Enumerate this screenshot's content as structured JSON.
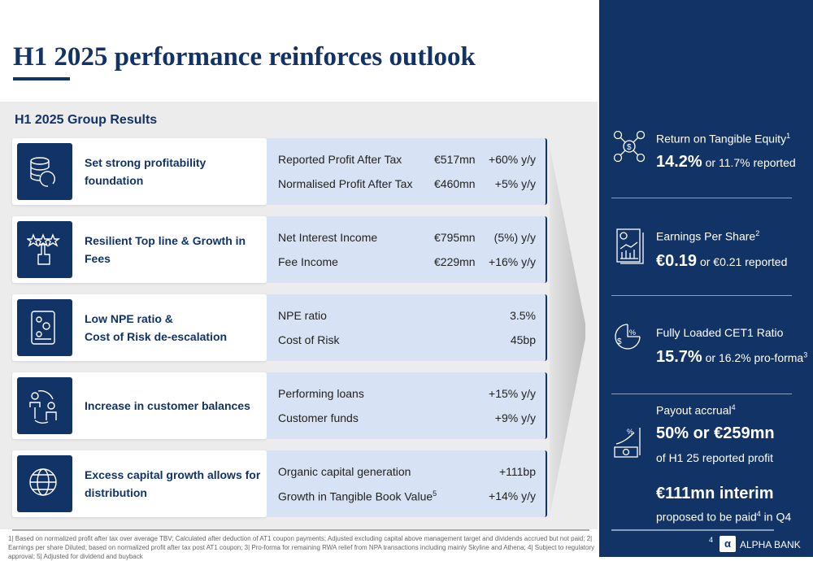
{
  "title": "H1 2025 performance reinforces outlook",
  "subtitle": "H1 2025 Group Results",
  "rows": [
    {
      "icon": "database-coin-icon",
      "label": "Set strong profitability foundation",
      "metrics": [
        {
          "name": "Reported Profit After Tax",
          "value": "€517mn",
          "change": "+60% y/y"
        },
        {
          "name": "Normalised Profit After Tax",
          "value": "€460mn",
          "change": "+5% y/y"
        }
      ]
    },
    {
      "icon": "stars-thumb-icon",
      "label": "Resilient Top line & Growth in Fees",
      "metrics": [
        {
          "name": "Net Interest Income",
          "value": "€795mn",
          "change": "(5%) y/y"
        },
        {
          "name": "Fee Income",
          "value": "€229mn",
          "change": "+16% y/y"
        }
      ]
    },
    {
      "icon": "tablet-gears-icon",
      "label": "Low NPE ratio & Cost of Risk de-escalation",
      "label1": "Low NPE ratio &",
      "label2": "Cost of Risk de-escalation",
      "metrics": [
        {
          "name": "NPE ratio",
          "value": "",
          "change": "3.5%"
        },
        {
          "name": "Cost of Risk",
          "value": "",
          "change": "45bp"
        }
      ]
    },
    {
      "icon": "customers-icon",
      "label": "Increase in customer balances",
      "metrics": [
        {
          "name": "Performing loans",
          "value": "",
          "change": "+15% y/y"
        },
        {
          "name": "Customer funds",
          "value": "",
          "change": "+9% y/y"
        }
      ]
    },
    {
      "icon": "globe-icon",
      "label": "Excess capital growth allows for distribution",
      "label1": "Excess capital growth allows for",
      "label2": "distribution",
      "metrics": [
        {
          "name": "Organic capital generation",
          "value": "",
          "change": "+111bp"
        },
        {
          "name": "Growth in Tangible Book Value",
          "sup": "5",
          "value": "",
          "change": "+14% y/y"
        }
      ]
    }
  ],
  "side": {
    "rote": {
      "label": "Return on Tangible Equity",
      "sup": "1",
      "big": "14.2%",
      "rest": " or 11.7% reported"
    },
    "eps": {
      "label": "Earnings Per Share",
      "sup": "2",
      "big": "€0.19",
      "rest": " or €0.21 reported"
    },
    "cet1": {
      "label": "Fully Loaded CET1 Ratio",
      "big": "15.7%",
      "rest": " or 16.2% pro-forma",
      "sup": "3"
    },
    "payout": {
      "label": "Payout accrual",
      "sup": "4",
      "big": "50% or €259mn",
      "rest": "of H1 25 reported profit"
    },
    "interim": {
      "big": "€111mn interim",
      "rest1": "proposed to be paid",
      "sup": "4",
      "rest2": " in Q4"
    }
  },
  "page_number": "4",
  "brand": "ALPHA BANK",
  "footnote": "1| Based on normalized profit after tax over average TBV; Calculated after deduction of AT1 coupon payments; Adjusted excluding capital above management target and dividends accrued but not paid; 2| Earnings per share Diluted; based on normalized profit after tax post AT1 coupon; 3| Pro-forma for remaining RWA relief from NPA transactions including mainly Skyline and Athena; 4| Subject to regulatory approval; 5| Adjusted for dividend and buyback"
}
